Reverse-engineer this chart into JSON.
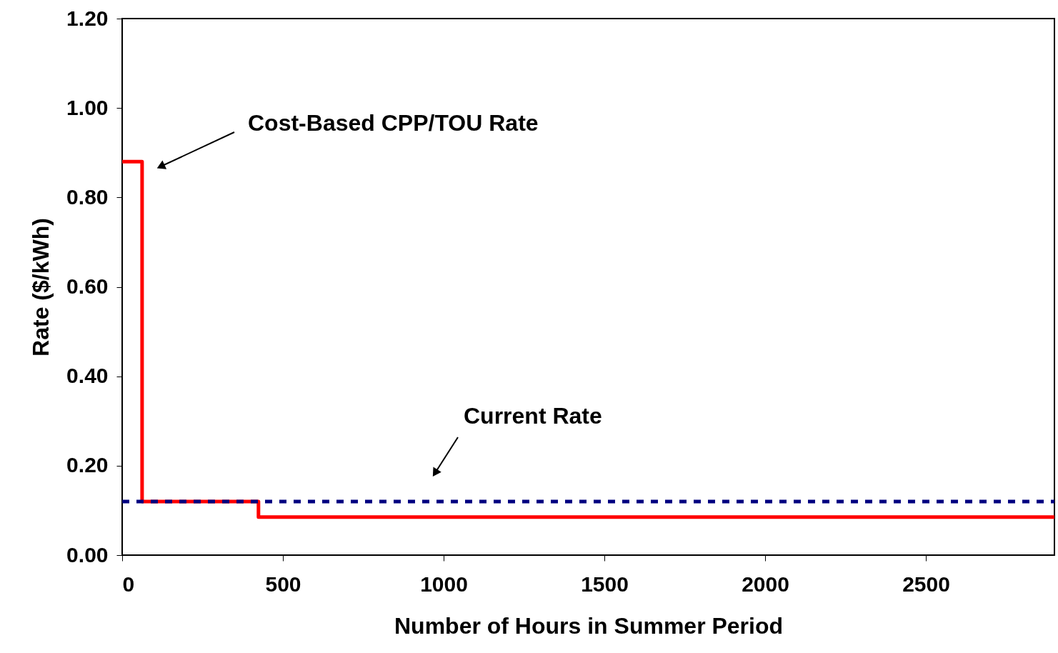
{
  "chart_data": {
    "type": "step",
    "xlabel": "Number of Hours in Summer Period",
    "ylabel": "Rate ($/kWh)",
    "xlim": [
      0,
      2900
    ],
    "xticks": [
      0,
      500,
      1000,
      1500,
      2000,
      2500
    ],
    "ylim": [
      0,
      1.2
    ],
    "yticks": [
      {
        "value": 0,
        "label": "0.00"
      },
      {
        "value": 0.2,
        "label": "0.20"
      },
      {
        "value": 0.4,
        "label": "0.40"
      },
      {
        "value": 0.6,
        "label": "0.60"
      },
      {
        "value": 0.8,
        "label": "0.80"
      },
      {
        "value": 1.0,
        "label": "1.00"
      },
      {
        "value": 1.2,
        "label": "1.20"
      }
    ],
    "grid": false,
    "series": [
      {
        "color": "#ff0000",
        "line_style": "solid",
        "x": [
          0,
          62,
          424,
          2900
        ],
        "values": [
          0.88,
          0.12,
          0.085,
          0.085
        ]
      },
      {
        "type": "line",
        "color": "#000080",
        "line_style": "dashed",
        "x": [
          0,
          2900
        ],
        "values": [
          0.12,
          0.12
        ]
      }
    ],
    "annotations": [
      "Cost-Based CPP/TOU Rate",
      "Current Rate"
    ]
  }
}
